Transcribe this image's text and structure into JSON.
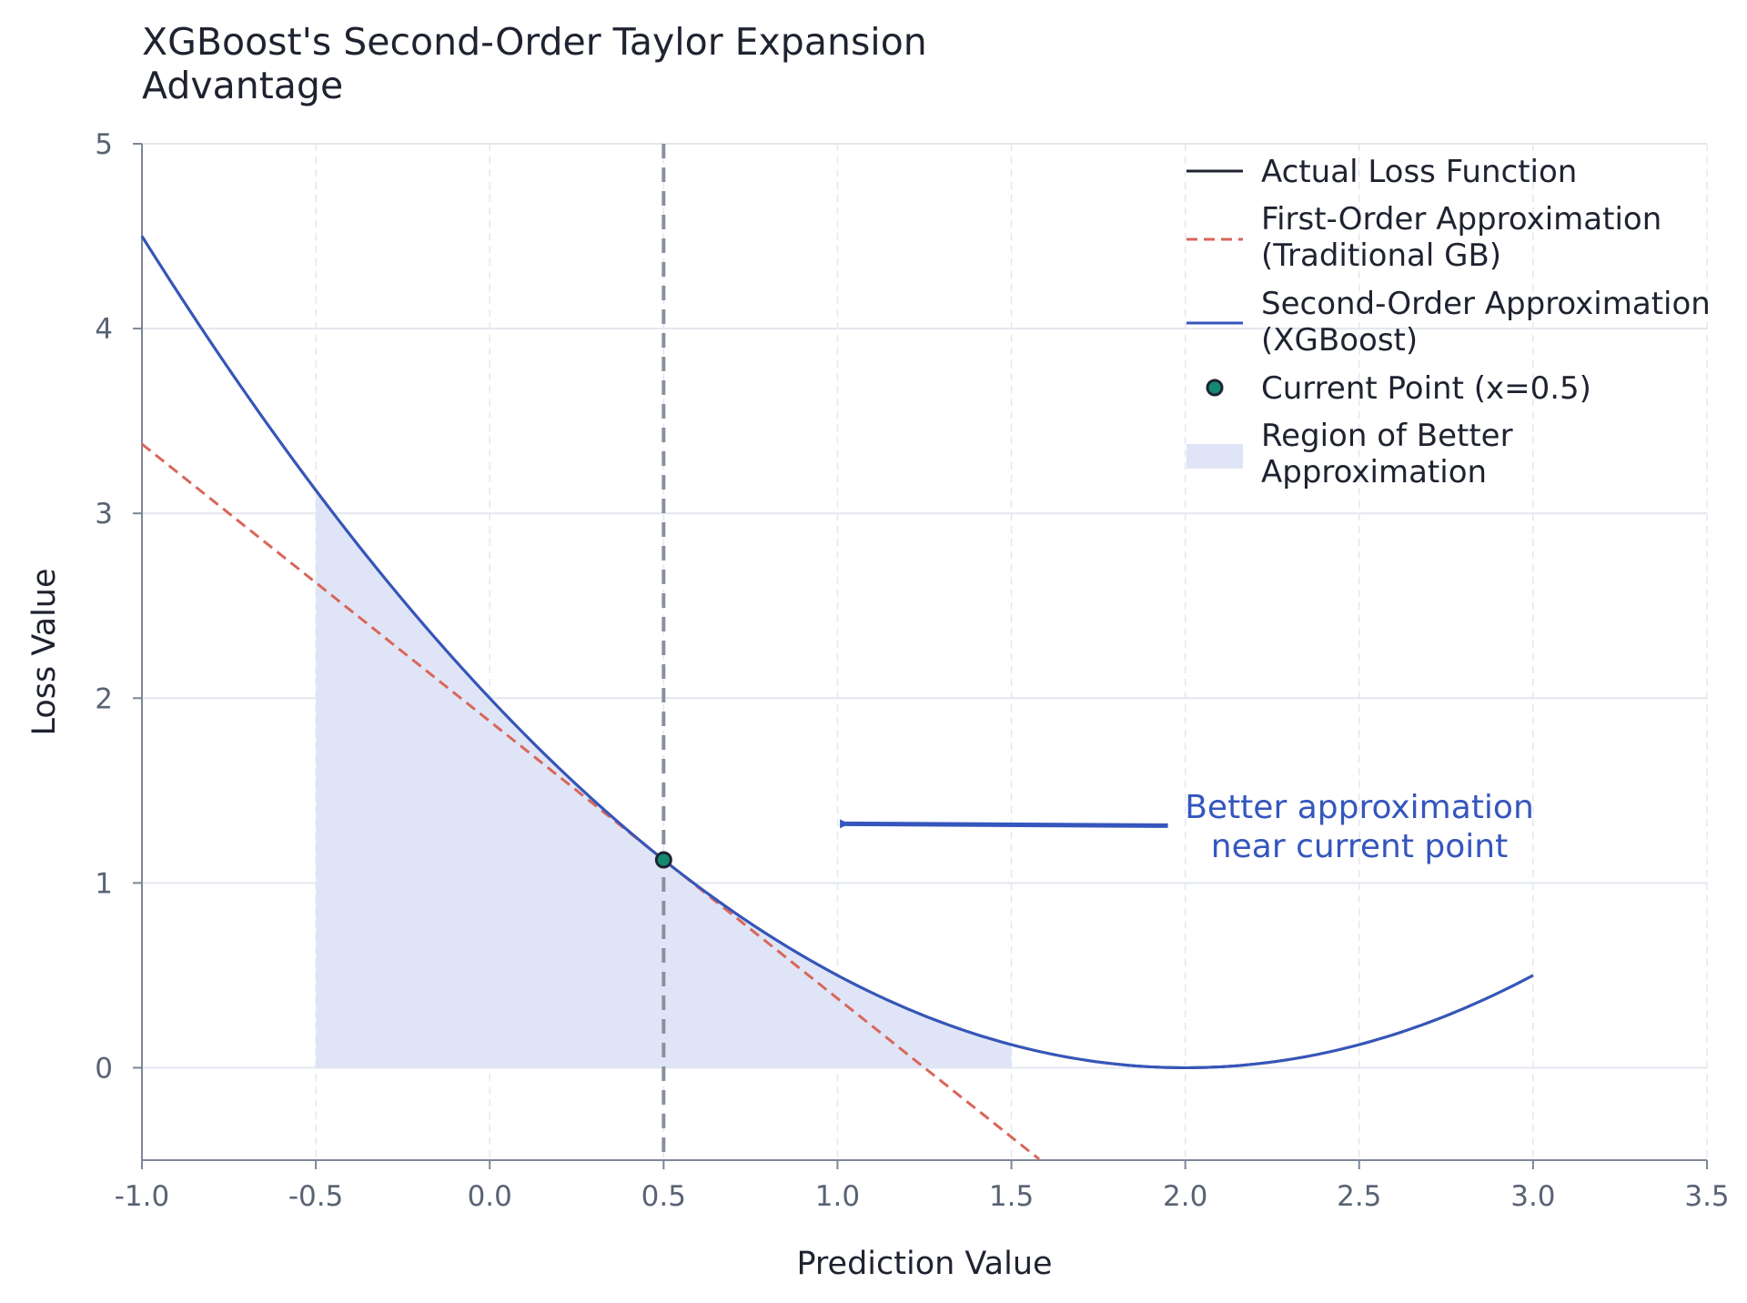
{
  "chart_data": {
    "type": "line",
    "title": "XGBoost's Second-Order Taylor Expansion\nAdvantage",
    "xlabel": "Prediction Value",
    "ylabel": "Loss Value",
    "xlim": [
      -1.0,
      3.5
    ],
    "ylim": [
      -0.5,
      5
    ],
    "x_ticks": [
      "-1.0",
      "-0.5",
      "0.0",
      "0.5",
      "1.0",
      "1.5",
      "2.0",
      "2.5",
      "3.0",
      "3.5"
    ],
    "y_ticks": [
      "0",
      "1",
      "2",
      "3",
      "4",
      "5"
    ],
    "grid": true,
    "legend_position": "top-right",
    "series": [
      {
        "name": "Actual Loss Function",
        "style": "solid",
        "color": "#1f2330",
        "x": [
          -1.0,
          -0.75,
          -0.5,
          -0.25,
          0.0,
          0.25,
          0.5,
          0.75,
          1.0,
          1.25,
          1.5,
          1.75,
          2.0,
          2.25,
          2.5,
          2.75,
          3.0
        ],
        "y": [
          4.5,
          3.78,
          3.125,
          2.53,
          2.0,
          1.53,
          1.125,
          0.78,
          0.5,
          0.28,
          0.125,
          0.03,
          0.0,
          0.03,
          0.125,
          0.28,
          0.5
        ]
      },
      {
        "name": "First-Order Approximation\n(Traditional GB)",
        "style": "dashed",
        "color": "#d9665a",
        "x": [
          -1.0,
          -0.5,
          0.0,
          0.5,
          1.0,
          1.58
        ],
        "y": [
          3.375,
          2.625,
          1.875,
          1.125,
          0.375,
          -0.495
        ]
      },
      {
        "name": "Second-Order Approximation\n(XGBoost)",
        "style": "solid",
        "color": "#3556bd",
        "x": [
          -1.0,
          -0.75,
          -0.5,
          -0.25,
          0.0,
          0.25,
          0.5,
          0.75,
          1.0,
          1.25,
          1.5,
          1.75,
          2.0,
          2.25,
          2.5,
          2.75,
          3.0
        ],
        "y": [
          4.5,
          3.78,
          3.125,
          2.53,
          2.0,
          1.53,
          1.125,
          0.78,
          0.5,
          0.28,
          0.125,
          0.03,
          0.0,
          0.03,
          0.125,
          0.28,
          0.5
        ]
      }
    ],
    "current_point": {
      "name": "Current Point (x=0.5)",
      "x": 0.5,
      "y": 1.125,
      "color": "#138a72"
    },
    "shaded_region": {
      "name": "Region of Better\nApproximation",
      "x_range": [
        -0.5,
        1.5
      ],
      "color": "#dfe5f6"
    },
    "vertical_line": {
      "x": 0.5,
      "color": "#8a909c"
    },
    "annotation": {
      "text": "Better approximation\nnear current point",
      "text_at": [
        1.5,
        1.3
      ],
      "arrow_from": [
        1.95,
        1.31
      ],
      "arrow_to": [
        1.02,
        1.32
      ],
      "color": "#3556bd"
    }
  }
}
